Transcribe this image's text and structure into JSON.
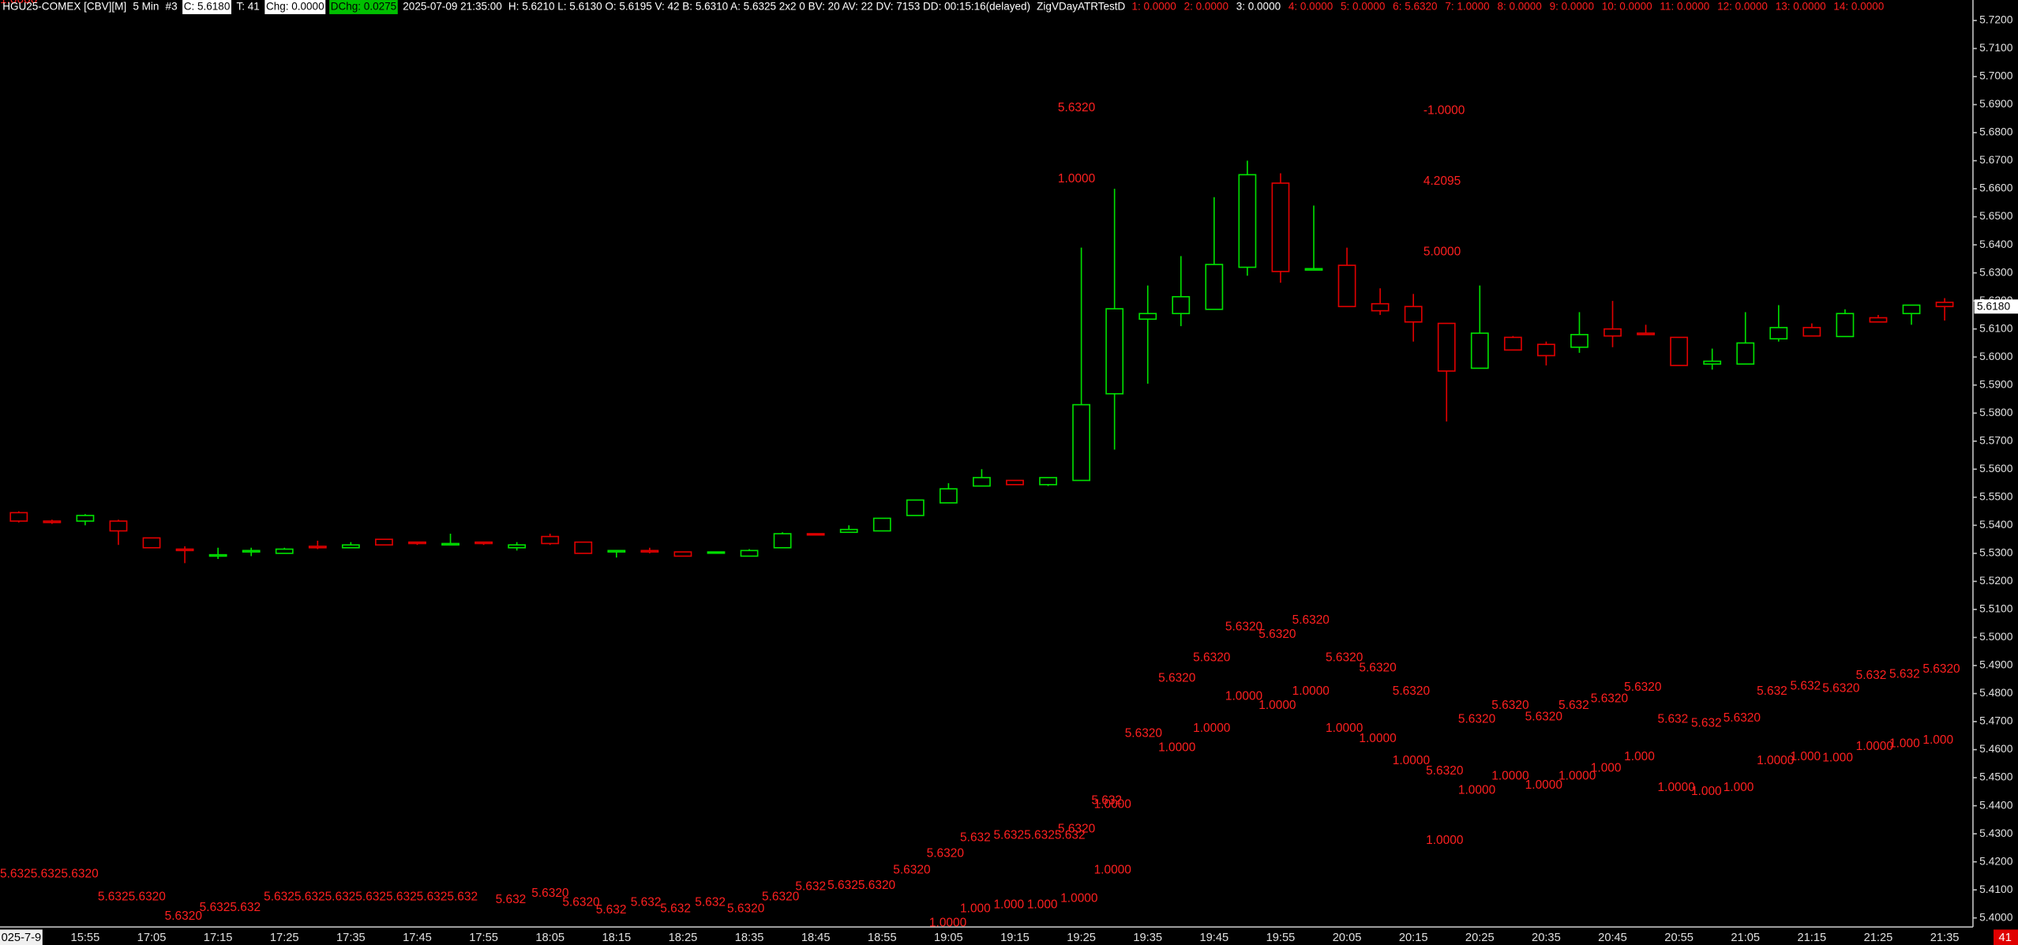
{
  "header": {
    "items": [
      "HGU25-COMEX [CBV][M]",
      "5 Min",
      "#3",
      "C: 5.6180",
      "T: 41",
      "Chg: 0.0000",
      "DChg: 0.0275",
      "2025-07-09 21:35:00",
      "H: 5.6210 L: 5.6130 O: 5.6195 V: 42 B: 5.6310 A: 5.6325 2x2 0 BV: 20 AV: 22 DV: 7153 DD: 00:15:16(delayed)",
      "ZigVDayATRTestD",
      "1: 0.0000",
      "2: 0.0000",
      "3: 0.0000",
      "4: 0.0000",
      "5: 0.0000",
      "6: 5.6320",
      "7: 1.0000",
      "8: 0.0000",
      "9: 0.0000",
      "10: 0.0000",
      "11: 0.0000",
      "12: 0.0000",
      "13: 0.0000",
      "14: 0.0000"
    ],
    "bar_count_badge": "41"
  },
  "chart_data": {
    "type": "candlestick",
    "categories": [
      "025-7-9",
      null,
      "15:55",
      null,
      "17:05",
      null,
      "17:15",
      null,
      "17:25",
      null,
      "17:35",
      null,
      "17:45",
      null,
      "17:55",
      null,
      "18:05",
      null,
      "18:15",
      null,
      "18:25",
      null,
      "18:35",
      null,
      "18:45",
      null,
      "18:55",
      null,
      "19:05",
      null,
      "19:15",
      null,
      "19:25",
      null,
      "19:35",
      null,
      "19:45",
      null,
      "19:55",
      null,
      "20:05",
      null,
      "20:15",
      null,
      "20:25",
      null,
      "20:35",
      null,
      "20:45",
      null,
      "20:55",
      null,
      "21:05",
      null,
      "21:15",
      null,
      "21:25",
      null,
      "21:35"
    ],
    "open": [
      5.5445,
      5.5415,
      5.5415,
      5.5415,
      5.5355,
      5.5315,
      5.529,
      5.5305,
      5.53,
      5.5325,
      5.532,
      5.535,
      5.534,
      5.533,
      5.534,
      5.532,
      5.536,
      5.534,
      5.5305,
      5.531,
      5.5305,
      5.5302,
      5.529,
      5.532,
      5.537,
      5.5375,
      5.538,
      5.5435,
      5.548,
      5.554,
      5.556,
      5.5545,
      5.556,
      5.5869,
      5.6135,
      5.6155,
      5.617,
      5.632,
      5.662,
      5.631,
      5.6327,
      5.619,
      5.618,
      5.612,
      5.596,
      5.607,
      5.6045,
      5.6035,
      5.61,
      5.6085,
      5.607,
      5.5975,
      5.5975,
      5.6065,
      5.6105,
      5.6073,
      5.614,
      5.6155,
      5.6195
    ],
    "high": [
      5.545,
      5.542,
      5.544,
      5.542,
      5.5355,
      5.5325,
      5.532,
      5.532,
      5.532,
      5.5345,
      5.534,
      5.535,
      5.534,
      5.537,
      5.534,
      5.534,
      5.537,
      5.534,
      5.531,
      5.532,
      5.5305,
      5.5305,
      5.5315,
      5.5375,
      5.537,
      5.54,
      5.5425,
      5.549,
      5.555,
      5.56,
      5.556,
      5.557,
      5.639,
      5.66,
      5.6255,
      5.636,
      5.657,
      5.67,
      5.6655,
      5.654,
      5.639,
      5.6245,
      5.6225,
      5.612,
      5.6255,
      5.6075,
      5.6055,
      5.616,
      5.62,
      5.6115,
      5.607,
      5.603,
      5.616,
      5.6185,
      5.612,
      5.617,
      5.615,
      5.6185,
      5.621
    ],
    "low": [
      5.541,
      5.5405,
      5.54,
      5.533,
      5.532,
      5.5265,
      5.528,
      5.529,
      5.53,
      5.5315,
      5.532,
      5.533,
      5.533,
      5.533,
      5.533,
      5.531,
      5.533,
      5.53,
      5.5285,
      5.53,
      5.529,
      5.53,
      5.529,
      5.532,
      5.5365,
      5.5375,
      5.538,
      5.5435,
      5.548,
      5.554,
      5.5545,
      5.554,
      5.556,
      5.567,
      5.5905,
      5.611,
      5.617,
      5.629,
      5.6265,
      5.631,
      5.618,
      5.615,
      5.6055,
      5.577,
      5.596,
      5.6025,
      5.597,
      5.6015,
      5.6035,
      5.608,
      5.597,
      5.5955,
      5.5975,
      5.6055,
      5.6075,
      5.6073,
      5.6125,
      5.6115,
      5.613
    ],
    "close": [
      5.5415,
      5.541,
      5.5435,
      5.538,
      5.532,
      5.531,
      5.5295,
      5.531,
      5.5315,
      5.532,
      5.533,
      5.533,
      5.5335,
      5.5335,
      5.5335,
      5.533,
      5.5335,
      5.53,
      5.531,
      5.5305,
      5.529,
      5.5305,
      5.531,
      5.537,
      5.5368,
      5.5385,
      5.5425,
      5.549,
      5.553,
      5.557,
      5.5545,
      5.557,
      5.583,
      5.6172,
      5.6155,
      5.6215,
      5.633,
      5.665,
      5.6305,
      5.6315,
      5.618,
      5.6165,
      5.6125,
      5.595,
      5.6085,
      5.6025,
      5.6005,
      5.608,
      5.6075,
      5.608,
      5.597,
      5.5985,
      5.605,
      5.6105,
      5.6075,
      5.6155,
      5.6125,
      5.6185,
      5.618
    ],
    "up_color": "#00e000",
    "down_color": "#e00000",
    "ylim": [
      5.3931,
      5.7273
    ],
    "yticks": [
      {
        "value": 5.4,
        "label": "5.4000"
      },
      {
        "value": 5.41,
        "label": "5.4100"
      },
      {
        "value": 5.42,
        "label": "5.4200"
      },
      {
        "value": 5.43,
        "label": "5.4300"
      },
      {
        "value": 5.44,
        "label": "5.4400"
      },
      {
        "value": 5.45,
        "label": "5.4500"
      },
      {
        "value": 5.46,
        "label": "5.4600"
      },
      {
        "value": 5.47,
        "label": "5.4700"
      },
      {
        "value": 5.48,
        "label": "5.4800"
      },
      {
        "value": 5.49,
        "label": "5.4900"
      },
      {
        "value": 5.5,
        "label": "5.5000"
      },
      {
        "value": 5.51,
        "label": "5.5100"
      },
      {
        "value": 5.52,
        "label": "5.5200"
      },
      {
        "value": 5.53,
        "label": "5.5300"
      },
      {
        "value": 5.54,
        "label": "5.5400"
      },
      {
        "value": 5.55,
        "label": "5.5500"
      },
      {
        "value": 5.56,
        "label": "5.5600"
      },
      {
        "value": 5.57,
        "label": "5.5700"
      },
      {
        "value": 5.58,
        "label": "5.5800"
      },
      {
        "value": 5.59,
        "label": "5.5900"
      },
      {
        "value": 5.6,
        "label": "5.6000"
      },
      {
        "value": 5.61,
        "label": "5.6100"
      },
      {
        "value": 5.62,
        "label": "5.6200"
      },
      {
        "value": 5.63,
        "label": "5.6300"
      },
      {
        "value": 5.64,
        "label": "5.6400"
      },
      {
        "value": 5.65,
        "label": "5.6500"
      },
      {
        "value": 5.66,
        "label": "5.6600"
      },
      {
        "value": 5.67,
        "label": "5.6700"
      },
      {
        "value": 5.68,
        "label": "5.6800"
      },
      {
        "value": 5.69,
        "label": "5.6900"
      },
      {
        "value": 5.7,
        "label": "5.7000"
      },
      {
        "value": 5.71,
        "label": "5.7100"
      },
      {
        "value": 5.72,
        "label": "5.7200"
      }
    ],
    "last_price": {
      "value": 5.618,
      "label": "5.6180"
    },
    "annotation_color": "#ff2020",
    "annotations": [
      "5.6320",
      "1.0000",
      "-1.0000",
      "4.2095",
      "5.0000",
      "5.6325.6325.6320",
      "5.6325.6320",
      "5.6320",
      "5.6325.632",
      "5.6325.6325.6325.6325.6325.6325.632",
      "5.632",
      "5.6320",
      "5.6320",
      "5.632",
      "5.632",
      "5.632",
      "5.632",
      "5.6320",
      "5.6320",
      "5.632",
      "5.6325.6320",
      "5.6320",
      "5.6320",
      "5.632",
      "5.6325.6325.632",
      "5.6320",
      "5.632",
      "5.6320",
      "5.6320",
      "5.6320",
      "5.6320",
      "5.6320",
      "5.6320",
      "5.6320",
      "5.6320",
      "5.6320",
      "5.6320",
      "5.6320",
      "5.6320",
      "5.6320",
      "5.632",
      "5.6320",
      "5.6320",
      "5.632",
      "5.632",
      "5.6320",
      "5.632",
      "5.632",
      "5.6320",
      "5.632",
      "5.632",
      "5.6320",
      "1.0000",
      "1.000",
      "1.000",
      "1.000",
      "1.0000",
      "1.0000",
      "1.0000",
      "1.0000",
      "1.0000",
      "1.0000",
      "1.0000",
      "1.0000",
      "1.0000",
      "1.0000",
      "1.0000",
      "1.0000",
      "1.0000",
      "1.0000",
      "1.0000",
      "1.0000",
      "1.000",
      "1.000",
      "1.0000",
      "1.000",
      "1.000",
      "1.0000",
      "1.000",
      "1.000",
      "1.0000",
      "1.000",
      "1.000",
      "1.0000"
    ]
  }
}
